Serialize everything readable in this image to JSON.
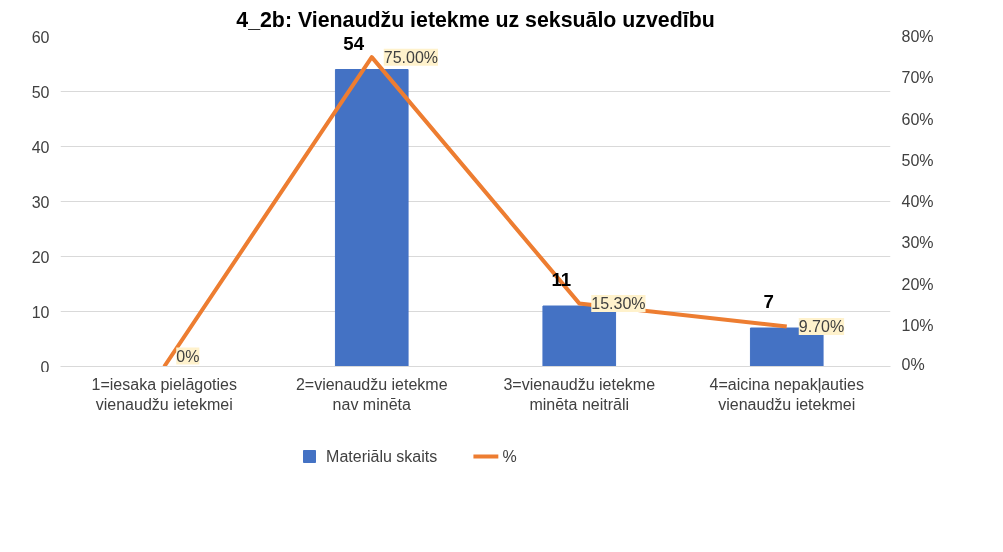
{
  "chart_data": {
    "type": "bar",
    "title": "4_2b: Vienaudžu ietekme uz seksuālo uzvedību",
    "categories": [
      "1=iesaka pielāgoties\nvienaudžu ietekmei",
      "2=vienaudžu ietekme\nnav minēta",
      "3=vienaudžu ietekme\nminēta neitrāli",
      "4=aicina nepakļauties\nvienaudžu ietekmei"
    ],
    "series": [
      {
        "name": "Materiālu skaits",
        "color": "#4472c4",
        "values": [
          0,
          54,
          11,
          7
        ],
        "value_labels": [
          null,
          "54",
          "11",
          "7"
        ]
      },
      {
        "name": "%",
        "type": "line",
        "axis": "y2",
        "color": "#ed7d31",
        "values": [
          0,
          75.0,
          15.3,
          9.7
        ],
        "value_labels": [
          "0%",
          "75.00%",
          "15.30%",
          "9.70%"
        ]
      }
    ],
    "ylim": [
      0,
      60
    ],
    "yticks": [
      0,
      10,
      20,
      30,
      40,
      50,
      60
    ],
    "y2lim": [
      0,
      80
    ],
    "y2ticks": [
      {
        "value": 0,
        "label": "0%"
      },
      {
        "value": 10,
        "label": "10%"
      },
      {
        "value": 20,
        "label": "20%"
      },
      {
        "value": 30,
        "label": "30%"
      },
      {
        "value": 40,
        "label": "40%"
      },
      {
        "value": 50,
        "label": "50%"
      },
      {
        "value": 60,
        "label": "60%"
      },
      {
        "value": 70,
        "label": "70%"
      },
      {
        "value": 80,
        "label": "80%"
      }
    ],
    "grid": "y",
    "legend": "bottom"
  }
}
